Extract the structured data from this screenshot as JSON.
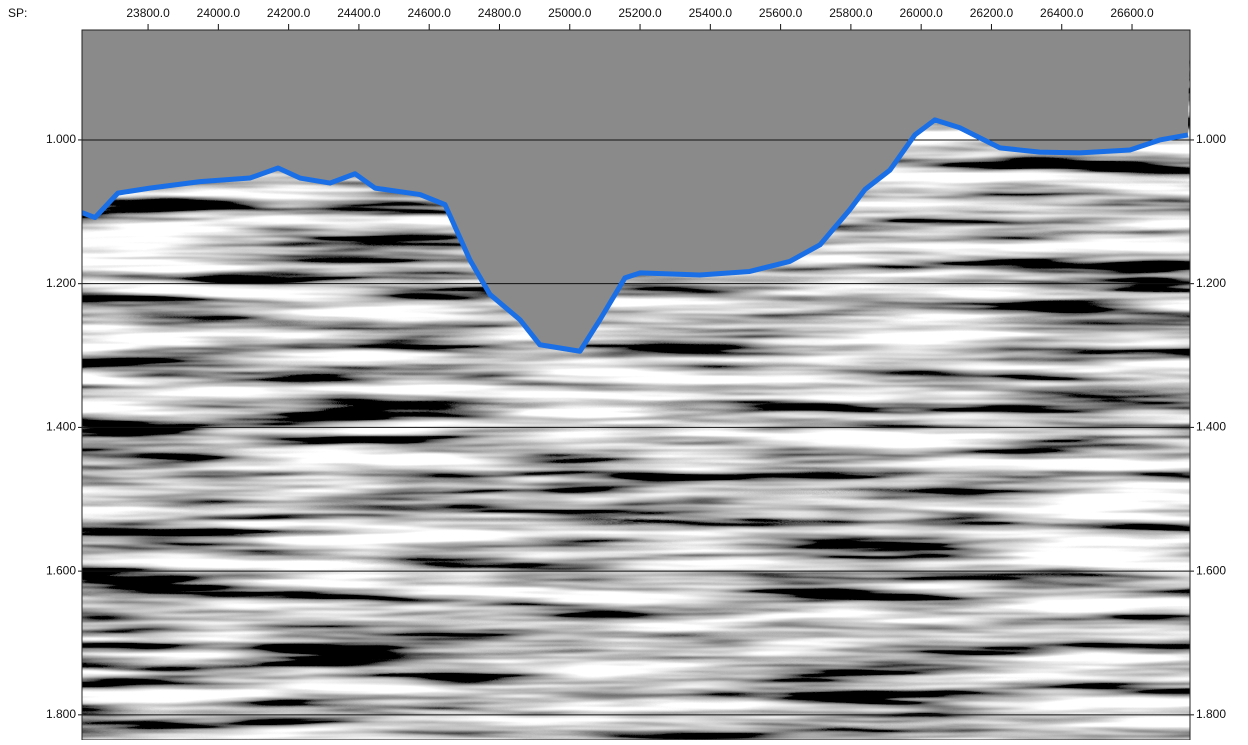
{
  "chart_data": {
    "type": "seismic",
    "x_axis_label": "SP:",
    "x": [
      23612,
      23649,
      23714,
      23805,
      23948,
      24090,
      24170,
      24232,
      24318,
      24389,
      24446,
      24574,
      24645,
      24716,
      24773,
      24858,
      24915,
      25029,
      25086,
      25157,
      25200,
      25370,
      25512,
      25626,
      25712,
      25797,
      25840,
      25911,
      25982,
      26039,
      26110,
      26224,
      26338,
      26451,
      26594,
      26679,
      26759
    ],
    "values": [
      1.101,
      1.108,
      1.074,
      1.067,
      1.058,
      1.053,
      1.039,
      1.053,
      1.06,
      1.047,
      1.067,
      1.076,
      1.09,
      1.167,
      1.215,
      1.25,
      1.285,
      1.294,
      1.25,
      1.192,
      1.185,
      1.188,
      1.183,
      1.169,
      1.146,
      1.097,
      1.069,
      1.042,
      0.993,
      0.972,
      0.983,
      1.011,
      1.017,
      1.018,
      1.014,
      1.0,
      0.993
    ],
    "color": "#1a6fe6",
    "xlim": [
      23612,
      26765
    ],
    "xticks": [
      {
        "value": 23800,
        "label": "23800.0"
      },
      {
        "value": 24000,
        "label": "24000.0"
      },
      {
        "value": 24200,
        "label": "24200.0"
      },
      {
        "value": 24400,
        "label": "24400.0"
      },
      {
        "value": 24600,
        "label": "24600.0"
      },
      {
        "value": 24800,
        "label": "24800.0"
      },
      {
        "value": 25000,
        "label": "25000.0"
      },
      {
        "value": 25200,
        "label": "25200.0"
      },
      {
        "value": 25400,
        "label": "25400.0"
      },
      {
        "value": 25600,
        "label": "25600.0"
      },
      {
        "value": 25800,
        "label": "25800.0"
      },
      {
        "value": 26000,
        "label": "26000.0"
      },
      {
        "value": 26200,
        "label": "26200.0"
      },
      {
        "value": 26400,
        "label": "26400.0"
      },
      {
        "value": 26600,
        "label": "26600.0"
      }
    ],
    "ylim": [
      0.847,
      1.835
    ],
    "yticks": [
      {
        "value": 1,
        "label": "1.000"
      },
      {
        "value": 1.2,
        "label": "1.200"
      },
      {
        "value": 1.4,
        "label": "1.400"
      },
      {
        "value": 1.6,
        "label": "1.600"
      },
      {
        "value": 1.8,
        "label": "1.800"
      }
    ],
    "grid": true
  }
}
